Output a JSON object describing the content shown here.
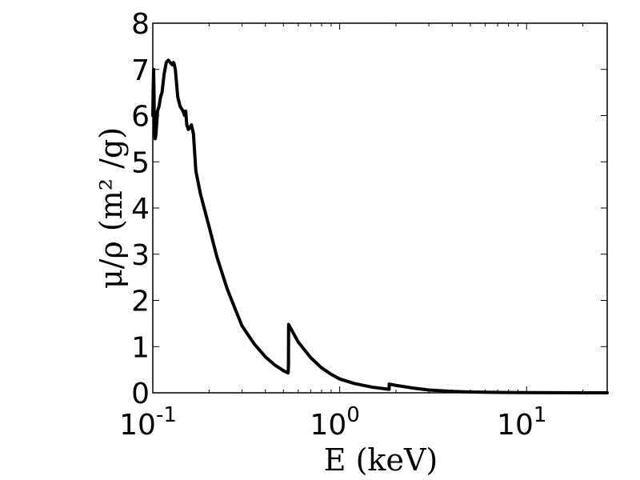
{
  "chart_data": {
    "type": "line",
    "xscale": "log",
    "xlim": [
      0.1,
      27
    ],
    "ylim": [
      0,
      8
    ],
    "xlabel": "E (keV)",
    "ylabel": "μ/ρ (m² /g)",
    "xtick_labels": [
      {
        "value": 0.1,
        "base": "10",
        "exp": "-1"
      },
      {
        "value": 1,
        "base": "10",
        "exp": "0"
      },
      {
        "value": 10,
        "base": "10",
        "exp": "1"
      }
    ],
    "yticks": [
      0,
      1,
      2,
      3,
      4,
      5,
      6,
      7,
      8
    ],
    "grid": false,
    "series": [
      {
        "color": "#000000",
        "x": [
          0.1,
          0.1005,
          0.101,
          0.1015,
          0.102,
          0.103,
          0.104,
          0.106,
          0.108,
          0.11,
          0.112,
          0.115,
          0.118,
          0.121,
          0.124,
          0.127,
          0.129,
          0.13,
          0.132,
          0.134,
          0.136,
          0.138,
          0.14,
          0.145,
          0.148,
          0.15,
          0.152,
          0.155,
          0.158,
          0.161,
          0.163,
          0.165,
          0.17,
          0.18,
          0.2,
          0.22,
          0.25,
          0.28,
          0.3,
          0.35,
          0.4,
          0.45,
          0.5,
          0.53,
          0.532,
          0.533,
          0.56,
          0.6,
          0.7,
          0.8,
          0.9,
          1.0,
          1.2,
          1.5,
          1.8,
          1.839,
          1.84,
          2.0,
          2.5,
          3.0,
          4.0,
          5.0,
          7.0,
          10.0,
          15.0,
          20.0,
          27.0
        ],
        "y": [
          6.0,
          6.6,
          7.0,
          6.5,
          5.6,
          5.5,
          5.6,
          6.1,
          6.2,
          6.4,
          6.5,
          6.9,
          7.15,
          7.2,
          7.15,
          7.1,
          7.15,
          7.12,
          7.0,
          6.7,
          6.4,
          6.3,
          6.2,
          6.1,
          6.0,
          6.1,
          5.8,
          5.7,
          5.75,
          5.8,
          5.7,
          5.6,
          4.8,
          4.3,
          3.6,
          2.95,
          2.25,
          1.75,
          1.45,
          1.05,
          0.78,
          0.6,
          0.48,
          0.43,
          0.6,
          1.48,
          1.32,
          1.1,
          0.76,
          0.54,
          0.4,
          0.3,
          0.2,
          0.12,
          0.08,
          0.075,
          0.19,
          0.16,
          0.1,
          0.06,
          0.03,
          0.018,
          0.008,
          0.004,
          0.002,
          0.001,
          0.0005
        ]
      }
    ]
  }
}
